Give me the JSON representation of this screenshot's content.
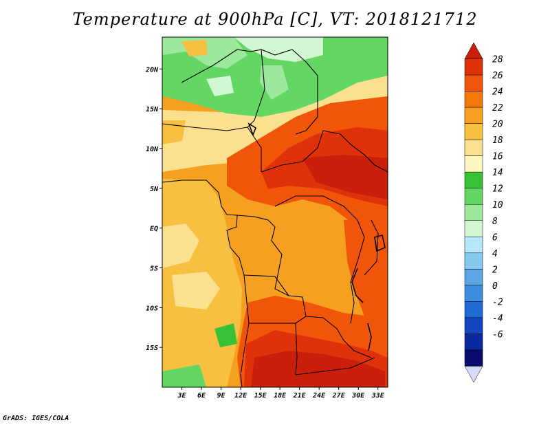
{
  "title": "Temperature at 900hPa [C], VT: 2018121712",
  "credit": "GrADS: IGES/COLA",
  "map": {
    "lon_range": [
      0,
      34.5
    ],
    "lat_range": [
      -20,
      24
    ],
    "lat_ticks": [
      {
        "value": 20,
        "label": "20N"
      },
      {
        "value": 15,
        "label": "15N"
      },
      {
        "value": 10,
        "label": "10N"
      },
      {
        "value": 5,
        "label": "5N"
      },
      {
        "value": 0,
        "label": "EQ"
      },
      {
        "value": -5,
        "label": "5S"
      },
      {
        "value": -10,
        "label": "10S"
      },
      {
        "value": -15,
        "label": "15S"
      }
    ],
    "lon_ticks": [
      {
        "value": 3,
        "label": "3E"
      },
      {
        "value": 6,
        "label": "6E"
      },
      {
        "value": 9,
        "label": "9E"
      },
      {
        "value": 12,
        "label": "12E"
      },
      {
        "value": 15,
        "label": "15E"
      },
      {
        "value": 18,
        "label": "18E"
      },
      {
        "value": 21,
        "label": "21E"
      },
      {
        "value": 24,
        "label": "24E"
      },
      {
        "value": 27,
        "label": "27E"
      },
      {
        "value": 30,
        "label": "30E"
      },
      {
        "value": 33,
        "label": "33E"
      }
    ]
  },
  "colorbar": {
    "labels": [
      "28",
      "26",
      "24",
      "22",
      "20",
      "18",
      "16",
      "14",
      "12",
      "10",
      "8",
      "6",
      "4",
      "2",
      "0",
      "-2",
      "-4",
      "-6"
    ],
    "colors": [
      "#c81e0a",
      "#e0320a",
      "#f0550a",
      "#f5780a",
      "#f7a020",
      "#f8c040",
      "#fbe090",
      "#fff6c0",
      "#37c137",
      "#63d663",
      "#9ce89c",
      "#d2f7d2",
      "#b8e6fa",
      "#84c8ee",
      "#5aa6e6",
      "#3c8ce0",
      "#1f6bd6",
      "#1446c0",
      "#0a28a0",
      "#0a0a6e",
      "#d8d8f8"
    ]
  },
  "colors": {
    "frame": "#000000",
    "border": "#000000"
  }
}
